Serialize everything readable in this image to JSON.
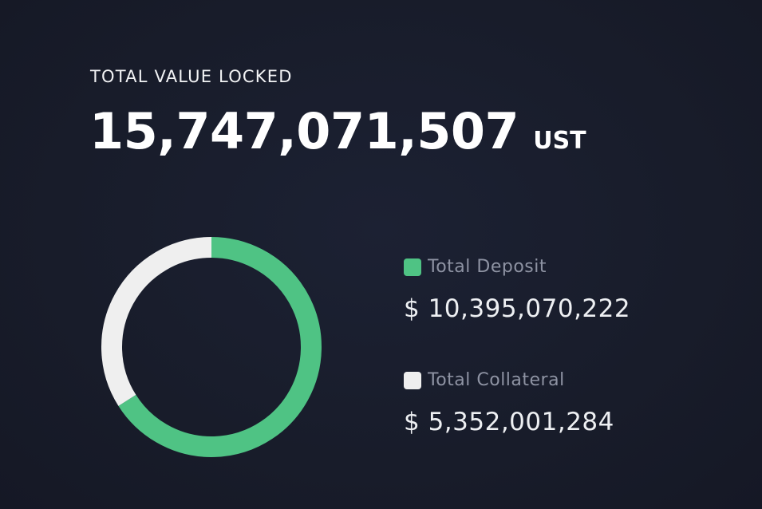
{
  "header": {
    "label": "TOTAL VALUE LOCKED",
    "value": "15,747,071,507",
    "unit": "UST"
  },
  "legend": [
    {
      "name": "Total Deposit",
      "value_text": "$ 10,395,070,222",
      "color": "#4fc384"
    },
    {
      "name": "Total Collateral",
      "value_text": "$ 5,352,001,284",
      "color": "#efefef"
    }
  ],
  "chart_data": {
    "type": "pie",
    "style": "donut",
    "title": "",
    "categories": [
      "Total Deposit",
      "Total Collateral"
    ],
    "values": [
      10395070222,
      5352001284
    ],
    "colors": [
      "#4fc384",
      "#efefef"
    ],
    "legend": "right"
  }
}
